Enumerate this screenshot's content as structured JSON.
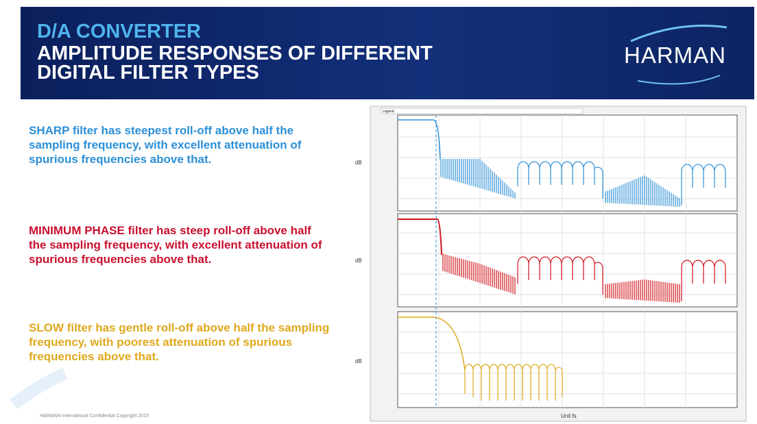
{
  "header": {
    "subtitle": "D/A CONVERTER",
    "title_lines": [
      "AMPLITUDE RESPONSES OF DIFFERENT",
      "DIGITAL FILTER TYPES"
    ],
    "logo": "HARMAN"
  },
  "paragraphs": [
    "SHARP filter has steepest roll-off above half the sampling frequency, with excellent attenuation of spurious frequencies above that.",
    "MINIMUM PHASE filter has steep roll-off above half the sampling frequency, with excellent attenuation of spurious frequencies above that.",
    "SLOW filter has gentle roll-off above half the sampling frequency, with poorest attenuation of spurious frequencies above that."
  ],
  "figure": {
    "legend_title": "Legend",
    "y_labels": [
      "dB",
      "dB",
      "dB"
    ],
    "x_label": "Unit fs"
  },
  "footer": "HARMAN International  Confidential  Copyright 2015"
}
